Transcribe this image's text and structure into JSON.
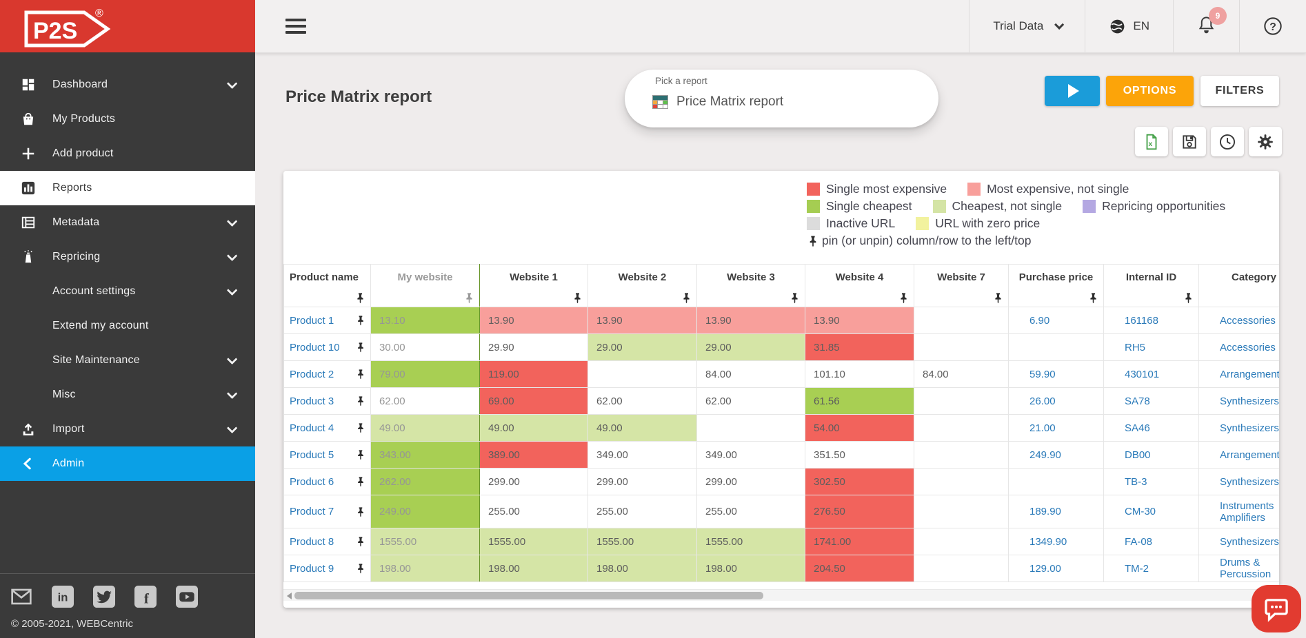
{
  "brand": {
    "logo_text": "P2S",
    "registered_mark": "®"
  },
  "sidebar": {
    "items": [
      {
        "id": "dashboard",
        "label": "Dashboard",
        "icon": "dashboard-icon",
        "chevron": true,
        "active": false,
        "highlighted": false
      },
      {
        "id": "my-products",
        "label": "My Products",
        "icon": "products-icon",
        "chevron": false,
        "active": false,
        "highlighted": false
      },
      {
        "id": "add-product",
        "label": "Add product",
        "icon": "add-icon",
        "chevron": false,
        "active": false,
        "highlighted": false
      },
      {
        "id": "reports",
        "label": "Reports",
        "icon": "reports-icon",
        "chevron": false,
        "active": true,
        "highlighted": false
      },
      {
        "id": "metadata",
        "label": "Metadata",
        "icon": "metadata-icon",
        "chevron": true,
        "active": false,
        "highlighted": false
      },
      {
        "id": "repricing",
        "label": "Repricing",
        "icon": "repricing-icon",
        "chevron": true,
        "active": false,
        "highlighted": false
      },
      {
        "id": "account-settings",
        "label": "Account settings",
        "icon": null,
        "chevron": true,
        "active": false,
        "highlighted": false
      },
      {
        "id": "extend-my-account",
        "label": "Extend my account",
        "icon": null,
        "chevron": false,
        "active": false,
        "highlighted": false
      },
      {
        "id": "site-maintenance",
        "label": "Site Maintenance",
        "icon": null,
        "chevron": true,
        "active": false,
        "highlighted": false
      },
      {
        "id": "misc",
        "label": "Misc",
        "icon": null,
        "chevron": true,
        "active": false,
        "highlighted": false
      },
      {
        "id": "import",
        "label": "Import",
        "icon": "import-icon",
        "chevron": true,
        "active": false,
        "highlighted": false
      },
      {
        "id": "admin",
        "label": "Admin",
        "icon": "back-chevron-icon",
        "chevron": false,
        "active": false,
        "highlighted": true
      }
    ],
    "social": [
      {
        "id": "email",
        "icon": "email-icon"
      },
      {
        "id": "linkedin",
        "icon": "linkedin-icon"
      },
      {
        "id": "twitter",
        "icon": "twitter-icon"
      },
      {
        "id": "facebook",
        "icon": "facebook-icon"
      },
      {
        "id": "youtube",
        "icon": "youtube-icon"
      }
    ],
    "copyright": "© 2005-2021, WEBCentric"
  },
  "topbar": {
    "account_label": "Trial Data",
    "language_label": "EN",
    "notification_count": "9"
  },
  "report": {
    "title": "Price Matrix report",
    "picker_label": "Pick a report",
    "picker_value": "Price Matrix report",
    "options_label": "OPTIONS",
    "filters_label": "FILTERS"
  },
  "legend": {
    "rows": [
      [
        {
          "label": "Single most expensive",
          "color": "#f2635c"
        },
        {
          "label": "Most expensive, not single",
          "color": "#f89f9b"
        }
      ],
      [
        {
          "label": "Single cheapest",
          "color": "#a5cd52"
        },
        {
          "label": "Cheapest, not single",
          "color": "#d4e4a5"
        },
        {
          "label": "Repricing opportunities",
          "color": "#b4a8e2"
        }
      ],
      [
        {
          "label": "Inactive URL",
          "color": "#dcdcdc"
        },
        {
          "label": "URL with zero price",
          "color": "#f2f29e"
        }
      ]
    ],
    "pin_note": "pin (or unpin) column/row to the left/top"
  },
  "cell_colors": {
    "cheapest-single": "#a8cf53",
    "cheapest": "#d5e5a6",
    "expensive-single": "#f2635c",
    "expensive": "#f89f9b",
    "none": "#ffffff",
    "empty": "#ffffff"
  },
  "colors": {
    "brand_red": "#d9382e",
    "admin_blue": "#0aa0e6",
    "accent_blue": "#1b9cd9",
    "accent_orange": "#fca409",
    "link_blue": "#2a7ab9"
  },
  "table": {
    "columns": [
      "Product name",
      "My website",
      "Website 1",
      "Website 2",
      "Website 3",
      "Website 4",
      "Website 7",
      "Purchase price",
      "Internal ID",
      "Category"
    ],
    "rows": [
      {
        "name": "Product 1",
        "prices": [
          {
            "v": "13.10",
            "s": "cheapest-single"
          },
          {
            "v": "13.90",
            "s": "expensive"
          },
          {
            "v": "13.90",
            "s": "expensive"
          },
          {
            "v": "13.90",
            "s": "expensive"
          },
          {
            "v": "13.90",
            "s": "expensive"
          }
        ],
        "website7": "",
        "purchase_price": "6.90",
        "internal_id": "161168",
        "category": [
          "Accessories"
        ]
      },
      {
        "name": "Product 10",
        "prices": [
          {
            "v": "30.00",
            "s": "none"
          },
          {
            "v": "29.90",
            "s": "none"
          },
          {
            "v": "29.00",
            "s": "cheapest"
          },
          {
            "v": "29.00",
            "s": "cheapest"
          },
          {
            "v": "31.85",
            "s": "expensive-single"
          }
        ],
        "website7": "",
        "purchase_price": "",
        "internal_id": "RH5",
        "category": [
          "Accessories"
        ]
      },
      {
        "name": "Product 2",
        "prices": [
          {
            "v": "79.00",
            "s": "cheapest-single"
          },
          {
            "v": "119.00",
            "s": "expensive-single"
          },
          {
            "v": "",
            "s": "empty"
          },
          {
            "v": "84.00",
            "s": "none"
          },
          {
            "v": "101.10",
            "s": "none"
          }
        ],
        "website7": "84.00",
        "purchase_price": "59.90",
        "internal_id": "430101",
        "category": [
          "Arrangements"
        ]
      },
      {
        "name": "Product 3",
        "prices": [
          {
            "v": "62.00",
            "s": "none"
          },
          {
            "v": "69.00",
            "s": "expensive-single"
          },
          {
            "v": "62.00",
            "s": "none"
          },
          {
            "v": "62.00",
            "s": "none"
          },
          {
            "v": "61.56",
            "s": "cheapest-single"
          }
        ],
        "website7": "",
        "purchase_price": "26.00",
        "internal_id": "SA78",
        "category": [
          "Synthesizers"
        ]
      },
      {
        "name": "Product 4",
        "prices": [
          {
            "v": "49.00",
            "s": "cheapest"
          },
          {
            "v": "49.00",
            "s": "cheapest"
          },
          {
            "v": "49.00",
            "s": "cheapest"
          },
          {
            "v": "",
            "s": "empty"
          },
          {
            "v": "54.00",
            "s": "expensive-single"
          }
        ],
        "website7": "",
        "purchase_price": "21.00",
        "internal_id": "SA46",
        "category": [
          "Synthesizers"
        ]
      },
      {
        "name": "Product 5",
        "prices": [
          {
            "v": "343.00",
            "s": "cheapest-single"
          },
          {
            "v": "389.00",
            "s": "expensive-single"
          },
          {
            "v": "349.00",
            "s": "none"
          },
          {
            "v": "349.00",
            "s": "none"
          },
          {
            "v": "351.50",
            "s": "none"
          }
        ],
        "website7": "",
        "purchase_price": "249.90",
        "internal_id": "DB00",
        "category": [
          "Arrangements"
        ]
      },
      {
        "name": "Product 6",
        "prices": [
          {
            "v": "262.00",
            "s": "cheapest-single"
          },
          {
            "v": "299.00",
            "s": "none"
          },
          {
            "v": "299.00",
            "s": "none"
          },
          {
            "v": "299.00",
            "s": "none"
          },
          {
            "v": "302.50",
            "s": "expensive-single"
          }
        ],
        "website7": "",
        "purchase_price": "",
        "internal_id": "TB-3",
        "category": [
          "Synthesizers"
        ]
      },
      {
        "name": "Product 7",
        "prices": [
          {
            "v": "249.00",
            "s": "cheapest-single"
          },
          {
            "v": "255.00",
            "s": "none"
          },
          {
            "v": "255.00",
            "s": "none"
          },
          {
            "v": "255.00",
            "s": "none"
          },
          {
            "v": "276.50",
            "s": "expensive-single"
          }
        ],
        "website7": "",
        "purchase_price": "189.90",
        "internal_id": "CM-30",
        "category": [
          "Instruments",
          "Amplifiers"
        ],
        "tall": true
      },
      {
        "name": "Product 8",
        "prices": [
          {
            "v": "1555.00",
            "s": "cheapest"
          },
          {
            "v": "1555.00",
            "s": "cheapest"
          },
          {
            "v": "1555.00",
            "s": "cheapest"
          },
          {
            "v": "1555.00",
            "s": "cheapest"
          },
          {
            "v": "1741.00",
            "s": "expensive-single"
          }
        ],
        "website7": "",
        "purchase_price": "1349.90",
        "internal_id": "FA-08",
        "category": [
          "Synthesizers"
        ]
      },
      {
        "name": "Product 9",
        "prices": [
          {
            "v": "198.00",
            "s": "cheapest"
          },
          {
            "v": "198.00",
            "s": "cheapest"
          },
          {
            "v": "198.00",
            "s": "cheapest"
          },
          {
            "v": "198.00",
            "s": "cheapest"
          },
          {
            "v": "204.50",
            "s": "expensive-single"
          }
        ],
        "website7": "",
        "purchase_price": "129.00",
        "internal_id": "TM-2",
        "category": [
          "Drums & Percussion"
        ]
      }
    ]
  }
}
